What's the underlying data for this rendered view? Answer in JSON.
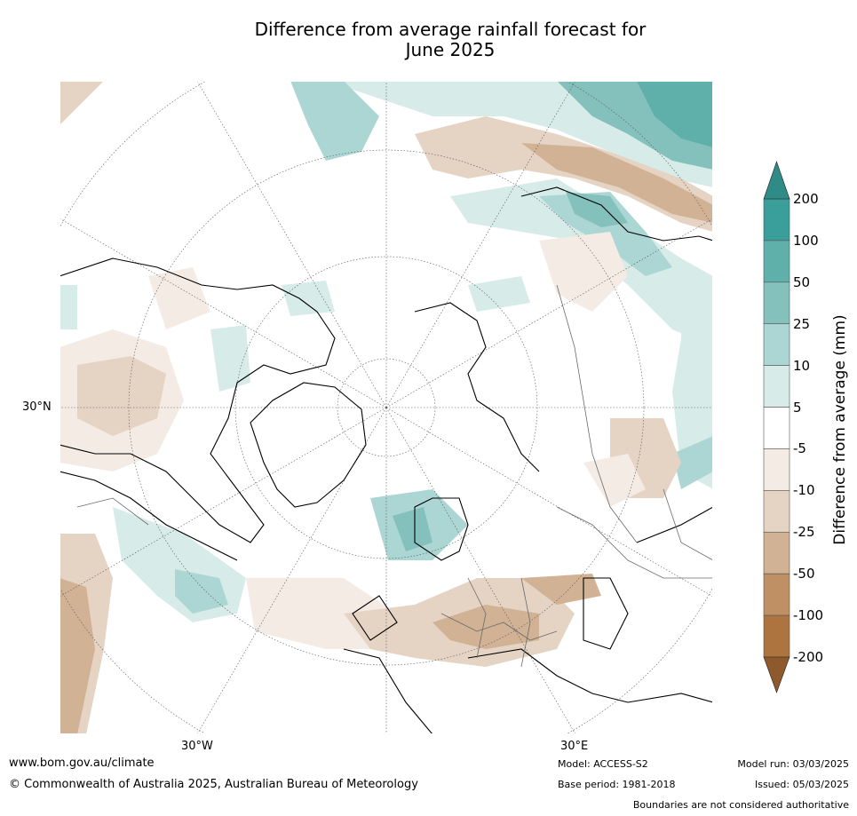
{
  "title_line1": "Difference from average rainfall forecast for",
  "title_line2": "June 2025",
  "map": {
    "projection": "north-polar-stereographic",
    "grid_labels": {
      "lat_30n": "30°N",
      "lon_30w": "30°W",
      "lon_30e": "30°E"
    }
  },
  "legend": {
    "title": "Difference from average (mm)",
    "ticks": [
      "200",
      "100",
      "50",
      "25",
      "10",
      "5",
      "-5",
      "-10",
      "-25",
      "-50",
      "-100",
      "-200"
    ],
    "colors": [
      "#2f8b87",
      "#3a9e9a",
      "#5fafab",
      "#84c1bd",
      "#acd6d3",
      "#d7ebe9",
      "#ffffff",
      "#f4ebe4",
      "#e5d3c3",
      "#d1b295",
      "#bf9063",
      "#ae7440",
      "#8f5a2b"
    ]
  },
  "footer": {
    "website": "www.bom.gov.au/climate",
    "copyright": "© Commonwealth of Australia 2025, Australian Bureau of Meteorology",
    "model": "Model: ACCESS-S2",
    "base_period": "Base period: 1981-2018",
    "model_run": "Model run: 03/03/2025",
    "issued": "Issued: 05/03/2025",
    "disclaimer": "Boundaries are not considered authoritative"
  }
}
